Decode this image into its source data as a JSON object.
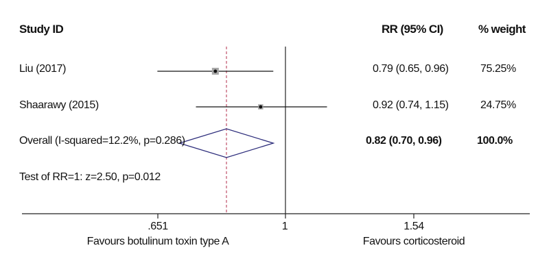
{
  "header": {
    "study_id": "Study ID",
    "rr_ci": "RR (95% CI)",
    "weight": "% weight"
  },
  "rows": [
    {
      "label": "Liu (2017)",
      "rr_text": "0.79 (0.65, 0.96)",
      "weight_text": "75.25%"
    },
    {
      "label": "Shaarawy (2015)",
      "rr_text": "0.92 (0.74, 1.15)",
      "weight_text": "24.75%"
    },
    {
      "label": "Overall (I-squared=12.2%, p=0.286)",
      "rr_text": "0.82 (0.70, 0.96)",
      "weight_text": "100.0%"
    },
    {
      "label": "Test of RR=1: z=2.50, p=0.012"
    }
  ],
  "axis": {
    "ticks": [
      ".651",
      "1",
      "1.54"
    ],
    "left_caption": "Favours botulinum toxin type A",
    "right_caption": "Favours corticosteroid"
  },
  "colors": {
    "axis": "#222222",
    "ci_line": "#111111",
    "weight_box": "#a8a8a8",
    "diamond": "#2b2b7a",
    "overall_line": "#c0506a"
  },
  "chart_data": {
    "type": "forest",
    "scale": "log",
    "xlim": [
      0.651,
      1.54
    ],
    "null_value": 1,
    "studies": [
      {
        "name": "Liu (2017)",
        "rr": 0.79,
        "lower": 0.65,
        "upper": 0.96,
        "weight": 75.25
      },
      {
        "name": "Shaarawy (2015)",
        "rr": 0.92,
        "lower": 0.74,
        "upper": 1.15,
        "weight": 24.75
      }
    ],
    "overall": {
      "name": "Overall",
      "rr": 0.82,
      "lower": 0.7,
      "upper": 0.96,
      "weight": 100.0,
      "i_squared": 12.2,
      "p": 0.286
    },
    "test": {
      "z": 2.5,
      "p": 0.012
    }
  }
}
